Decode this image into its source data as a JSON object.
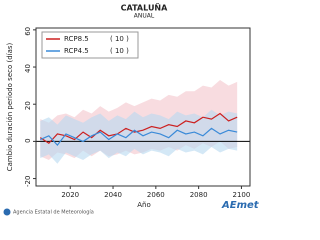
{
  "chart_data": {
    "type": "line",
    "title": "CATALUÑA",
    "subtitle": "ANUAL",
    "y_label": "Cambio duración periodo seco (días)",
    "x_label": "Año",
    "x": [
      2006,
      2010,
      2014,
      2018,
      2022,
      2026,
      2030,
      2034,
      2038,
      2042,
      2046,
      2050,
      2054,
      2058,
      2062,
      2066,
      2070,
      2074,
      2078,
      2082,
      2086,
      2090,
      2094,
      2098
    ],
    "series": [
      {
        "name": "RCP8.5",
        "count_label": "( 10 )",
        "color": "#cc2020",
        "band_color": "#f4c4cc",
        "values": [
          2,
          -1,
          4,
          3,
          1,
          5,
          2,
          6,
          3,
          4,
          7,
          5,
          6,
          8,
          7,
          9,
          8,
          11,
          10,
          13,
          12,
          15,
          11,
          13
        ],
        "upper": [
          12,
          10,
          14,
          15,
          13,
          17,
          15,
          19,
          16,
          18,
          21,
          19,
          21,
          23,
          22,
          25,
          24,
          27,
          27,
          30,
          29,
          33,
          30,
          32
        ],
        "lower": [
          -8,
          -10,
          -6,
          -7,
          -9,
          -5,
          -8,
          -5,
          -8,
          -7,
          -5,
          -7,
          -6,
          -4,
          -5,
          -3,
          -5,
          -2,
          -4,
          -1,
          -3,
          0,
          -4,
          -3
        ]
      },
      {
        "name": "RCP4.5",
        "count_label": "( 10 )",
        "color": "#3a8ad8",
        "band_color": "#b8d8f0",
        "values": [
          1,
          3,
          -2,
          4,
          2,
          0,
          3,
          5,
          1,
          4,
          2,
          6,
          3,
          5,
          4,
          2,
          6,
          4,
          5,
          3,
          7,
          4,
          6,
          5
        ],
        "upper": [
          11,
          13,
          9,
          14,
          12,
          10,
          13,
          15,
          11,
          14,
          12,
          16,
          13,
          15,
          14,
          12,
          16,
          14,
          15,
          13,
          17,
          14,
          16,
          15
        ],
        "lower": [
          -9,
          -7,
          -12,
          -6,
          -8,
          -10,
          -7,
          -5,
          -9,
          -6,
          -8,
          -4,
          -7,
          -5,
          -6,
          -8,
          -4,
          -6,
          -5,
          -7,
          -3,
          -6,
          -4,
          -5
        ]
      }
    ],
    "xlim": [
      2004,
      2104
    ],
    "xticks": [
      2020,
      2040,
      2060,
      2080,
      2100
    ],
    "ylim": [
      -24,
      61
    ],
    "yticks": [
      -20,
      0,
      20,
      40,
      60
    ],
    "legend": "upper-left",
    "footer": "Agencia Estatal de Meteorología",
    "logo": "AEmet"
  }
}
